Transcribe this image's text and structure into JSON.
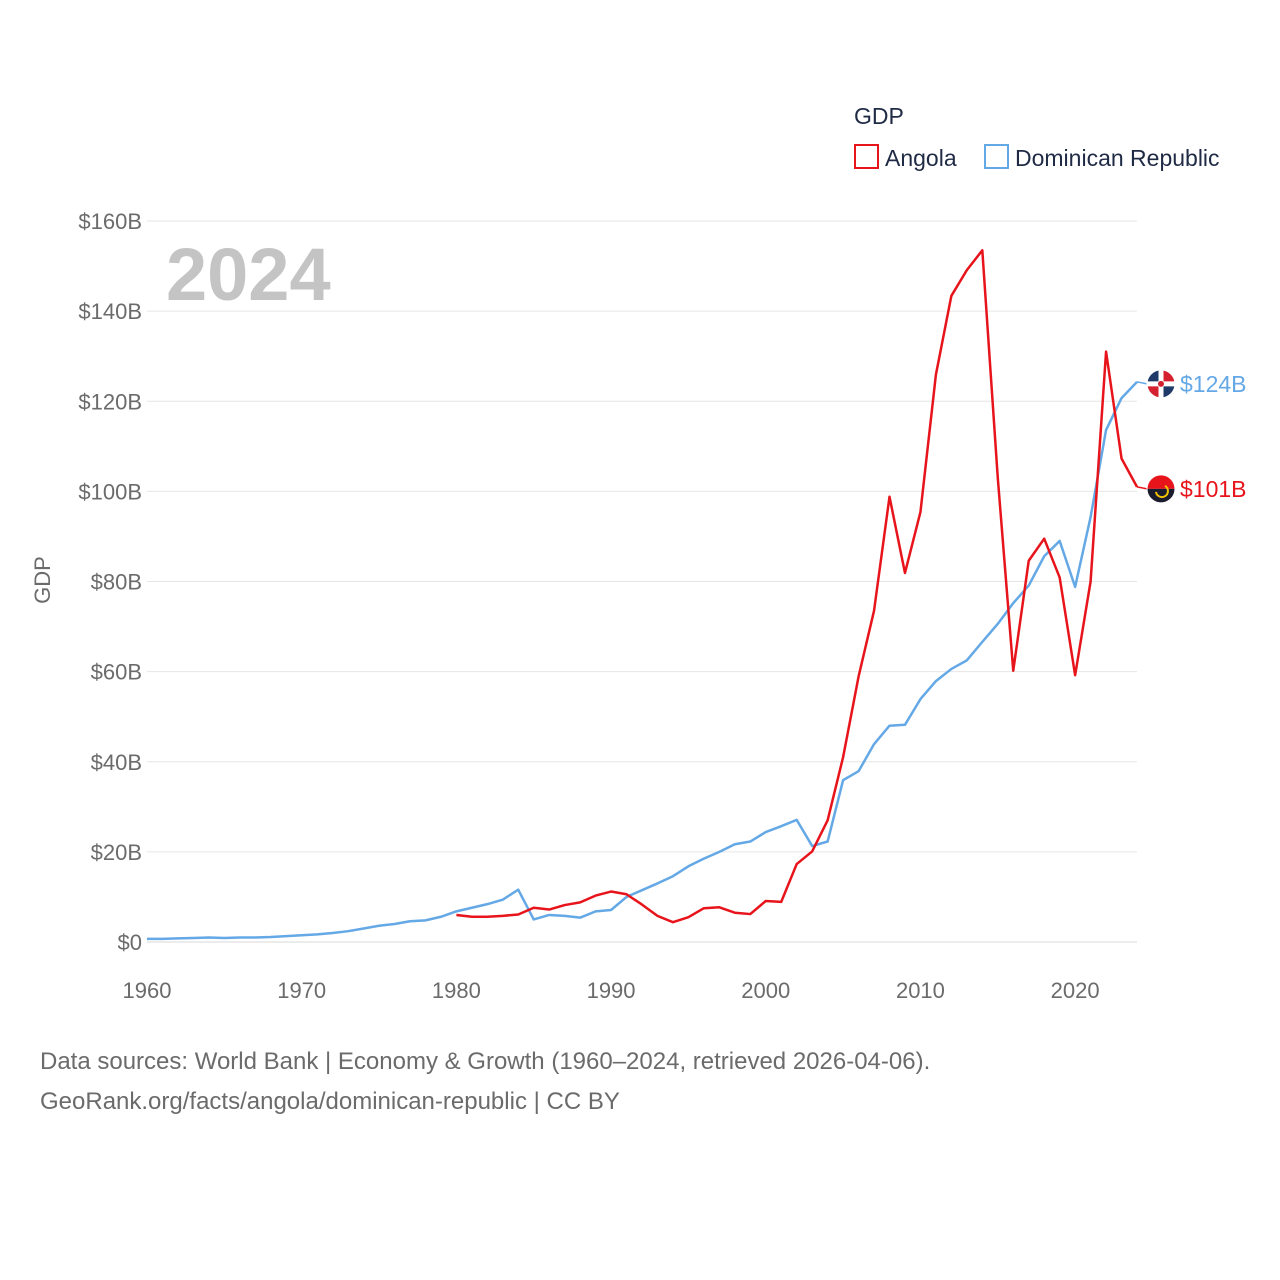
{
  "chart_data": {
    "type": "line",
    "title": "GDP",
    "ylabel": "GDP",
    "xlabel": "",
    "xlim": [
      1960,
      2024
    ],
    "ylim": [
      0,
      160
    ],
    "year_label": "2024",
    "x_ticks": [
      "1960",
      "1970",
      "1980",
      "1990",
      "2000",
      "2010",
      "2020"
    ],
    "y_ticks": [
      "$0",
      "$20B",
      "$40B",
      "$60B",
      "$80B",
      "$100B",
      "$120B",
      "$140B",
      "$160B"
    ],
    "series": [
      {
        "name": "Angola",
        "color": "#e8141b",
        "end_label": "$101B",
        "x": [
          1980,
          1981,
          1982,
          1983,
          1984,
          1985,
          1986,
          1987,
          1988,
          1989,
          1990,
          1991,
          1992,
          1993,
          1994,
          1995,
          1996,
          1997,
          1998,
          1999,
          2000,
          2001,
          2002,
          2003,
          2004,
          2005,
          2006,
          2007,
          2008,
          2009,
          2010,
          2011,
          2012,
          2013,
          2014,
          2015,
          2016,
          2017,
          2018,
          2019,
          2020,
          2021,
          2022,
          2023,
          2024
        ],
        "values": [
          6.0,
          5.6,
          5.6,
          5.8,
          6.1,
          7.6,
          7.2,
          8.2,
          8.8,
          10.3,
          11.2,
          10.6,
          8.3,
          5.8,
          4.4,
          5.5,
          7.5,
          7.7,
          6.5,
          6.2,
          9.1,
          8.9,
          17.3,
          20.1,
          27.0,
          41.0,
          58.9,
          73.5,
          98.8,
          81.9,
          95.4,
          125.9,
          143.4,
          149.1,
          153.5,
          103.0,
          60.2,
          84.6,
          89.5,
          80.9,
          59.2,
          80.0,
          131.0,
          107.3,
          101.0
        ]
      },
      {
        "name": "Dominican Republic",
        "color": "#64a8e6",
        "end_label": "$124B",
        "x": [
          1960,
          1961,
          1962,
          1963,
          1964,
          1965,
          1966,
          1967,
          1968,
          1969,
          1970,
          1971,
          1972,
          1973,
          1974,
          1975,
          1976,
          1977,
          1978,
          1979,
          1980,
          1981,
          1982,
          1983,
          1984,
          1985,
          1986,
          1987,
          1988,
          1989,
          1990,
          1991,
          1992,
          1993,
          1994,
          1995,
          1996,
          1997,
          1998,
          1999,
          2000,
          2001,
          2002,
          2003,
          2004,
          2005,
          2006,
          2007,
          2008,
          2009,
          2010,
          2011,
          2012,
          2013,
          2014,
          2015,
          2016,
          2017,
          2018,
          2019,
          2020,
          2021,
          2022,
          2023,
          2024
        ],
        "values": [
          0.7,
          0.7,
          0.8,
          0.9,
          1.0,
          0.9,
          1.0,
          1.0,
          1.1,
          1.3,
          1.5,
          1.7,
          2.0,
          2.4,
          3.0,
          3.6,
          4.0,
          4.6,
          4.8,
          5.6,
          6.8,
          7.6,
          8.4,
          9.4,
          11.6,
          5.0,
          6.0,
          5.8,
          5.4,
          6.8,
          7.1,
          10.0,
          11.5,
          13.0,
          14.6,
          16.8,
          18.5,
          20.0,
          21.7,
          22.3,
          24.4,
          25.7,
          27.1,
          21.3,
          22.3,
          35.9,
          37.9,
          43.9,
          48.0,
          48.2,
          53.9,
          57.9,
          60.6,
          62.5,
          66.6,
          70.6,
          75.2,
          79.1,
          85.6,
          89.0,
          78.8,
          94.3,
          113.6,
          120.7,
          124.3
        ]
      }
    ]
  },
  "footer": {
    "line1": "Data sources: World Bank | Economy & Growth (1960–2024, retrieved 2026-04-06).",
    "line2": "GeoRank.org/facts/angola/dominican-republic | CC BY"
  }
}
